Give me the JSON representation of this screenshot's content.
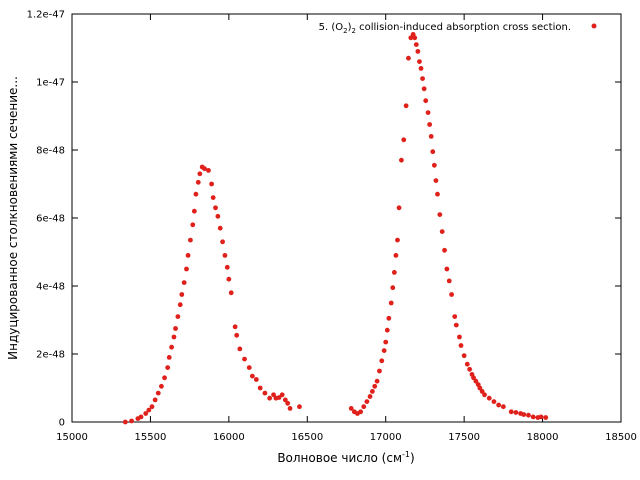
{
  "chart_data": {
    "type": "scatter",
    "title": "",
    "xlabel": "Волновое число (см",
    "xlabel_sup": "-1",
    "xlabel_end": ")",
    "ylabel": "Индуцированное столкновениями сечение...",
    "xlim": [
      15000,
      18500
    ],
    "ylim": [
      0,
      1.2e-47
    ],
    "grid": false,
    "legend_position": "top-right",
    "x_ticks": [
      15000,
      15500,
      16000,
      16500,
      17000,
      17500,
      18000,
      18500
    ],
    "x_tick_labels": [
      "15000",
      "15500",
      "16000",
      "16500",
      "17000",
      "17500",
      "18000",
      "18500"
    ],
    "y_ticks": [
      0,
      2e-48,
      4e-48,
      6e-48,
      8e-48,
      1e-47,
      1.2e-47
    ],
    "y_tick_labels": [
      "0",
      "2e-48",
      "4e-48",
      "6e-48",
      "8e-48",
      "1e-47",
      "1.2e-47"
    ],
    "colors": {
      "series": "#e0201b",
      "axis": "#000000"
    },
    "series": [
      {
        "name": "5. (O2)2 collision-induced absorption cross section.",
        "legend_parts": [
          "5. (O",
          "2",
          ")",
          "2",
          " collision-induced absorption cross section."
        ],
        "points": [
          [
            15340,
            0.0
          ],
          [
            15380,
            3e-50
          ],
          [
            15420,
            1e-49
          ],
          [
            15440,
            1.5e-49
          ],
          [
            15470,
            2.5e-49
          ],
          [
            15490,
            3.5e-49
          ],
          [
            15510,
            4.5e-49
          ],
          [
            15530,
            6.5e-49
          ],
          [
            15550,
            8.5e-49
          ],
          [
            15570,
            1.05e-48
          ],
          [
            15590,
            1.3e-48
          ],
          [
            15610,
            1.6e-48
          ],
          [
            15620,
            1.9e-48
          ],
          [
            15635,
            2.2e-48
          ],
          [
            15650,
            2.5e-48
          ],
          [
            15660,
            2.75e-48
          ],
          [
            15675,
            3.1e-48
          ],
          [
            15690,
            3.45e-48
          ],
          [
            15700,
            3.75e-48
          ],
          [
            15715,
            4.1e-48
          ],
          [
            15730,
            4.5e-48
          ],
          [
            15740,
            4.9e-48
          ],
          [
            15755,
            5.35e-48
          ],
          [
            15770,
            5.8e-48
          ],
          [
            15780,
            6.2e-48
          ],
          [
            15790,
            6.7e-48
          ],
          [
            15805,
            7.05e-48
          ],
          [
            15815,
            7.3e-48
          ],
          [
            15830,
            7.5e-48
          ],
          [
            15845,
            7.45e-48
          ],
          [
            15870,
            7.4e-48
          ],
          [
            15890,
            7e-48
          ],
          [
            15900,
            6.6e-48
          ],
          [
            15915,
            6.3e-48
          ],
          [
            15930,
            6.05e-48
          ],
          [
            15945,
            5.7e-48
          ],
          [
            15960,
            5.3e-48
          ],
          [
            15975,
            4.9e-48
          ],
          [
            15990,
            4.55e-48
          ],
          [
            16000,
            4.2e-48
          ],
          [
            16015,
            3.8e-48
          ],
          [
            16040,
            2.8e-48
          ],
          [
            16050,
            2.55e-48
          ],
          [
            16070,
            2.15e-48
          ],
          [
            16100,
            1.85e-48
          ],
          [
            16130,
            1.6e-48
          ],
          [
            16150,
            1.35e-48
          ],
          [
            16175,
            1.25e-48
          ],
          [
            16200,
            1e-48
          ],
          [
            16230,
            8.5e-49
          ],
          [
            16260,
            7e-49
          ],
          [
            16285,
            8e-49
          ],
          [
            16300,
            7e-49
          ],
          [
            16320,
            7.2e-49
          ],
          [
            16340,
            8e-49
          ],
          [
            16360,
            6.5e-49
          ],
          [
            16375,
            5.5e-49
          ],
          [
            16390,
            4e-49
          ],
          [
            16450,
            4.5e-49
          ],
          [
            16780,
            4e-49
          ],
          [
            16800,
            3e-49
          ],
          [
            16820,
            2.5e-49
          ],
          [
            16840,
            3e-49
          ],
          [
            16860,
            4.5e-49
          ],
          [
            16880,
            6e-49
          ],
          [
            16900,
            7.5e-49
          ],
          [
            16915,
            9e-49
          ],
          [
            16930,
            1.05e-48
          ],
          [
            16945,
            1.2e-48
          ],
          [
            16960,
            1.5e-48
          ],
          [
            16975,
            1.8e-48
          ],
          [
            16990,
            2.1e-48
          ],
          [
            17000,
            2.35e-48
          ],
          [
            17010,
            2.7e-48
          ],
          [
            17020,
            3.05e-48
          ],
          [
            17035,
            3.5e-48
          ],
          [
            17045,
            3.95e-48
          ],
          [
            17055,
            4.4e-48
          ],
          [
            17065,
            4.9e-48
          ],
          [
            17075,
            5.35e-48
          ],
          [
            17085,
            6.3e-48
          ],
          [
            17100,
            7.7e-48
          ],
          [
            17115,
            8.3e-48
          ],
          [
            17130,
            9.3e-48
          ],
          [
            17145,
            1.07e-47
          ],
          [
            17160,
            1.13e-47
          ],
          [
            17175,
            1.14e-47
          ],
          [
            17185,
            1.13e-47
          ],
          [
            17195,
            1.11e-47
          ],
          [
            17205,
            1.09e-47
          ],
          [
            17215,
            1.06e-47
          ],
          [
            17225,
            1.04e-47
          ],
          [
            17235,
            1.01e-47
          ],
          [
            17245,
            9.8e-48
          ],
          [
            17255,
            9.45e-48
          ],
          [
            17270,
            9.1e-48
          ],
          [
            17280,
            8.75e-48
          ],
          [
            17290,
            8.4e-48
          ],
          [
            17300,
            7.95e-48
          ],
          [
            17310,
            7.55e-48
          ],
          [
            17320,
            7.1e-48
          ],
          [
            17330,
            6.7e-48
          ],
          [
            17345,
            6.1e-48
          ],
          [
            17360,
            5.6e-48
          ],
          [
            17375,
            5.05e-48
          ],
          [
            17390,
            4.5e-48
          ],
          [
            17405,
            4.15e-48
          ],
          [
            17420,
            3.75e-48
          ],
          [
            17440,
            3.1e-48
          ],
          [
            17450,
            2.85e-48
          ],
          [
            17470,
            2.5e-48
          ],
          [
            17480,
            2.25e-48
          ],
          [
            17500,
            1.95e-48
          ],
          [
            17520,
            1.7e-48
          ],
          [
            17535,
            1.55e-48
          ],
          [
            17550,
            1.4e-48
          ],
          [
            17560,
            1.3e-48
          ],
          [
            17575,
            1.2e-48
          ],
          [
            17590,
            1.1e-48
          ],
          [
            17600,
            1e-48
          ],
          [
            17615,
            9e-49
          ],
          [
            17630,
            8e-49
          ],
          [
            17660,
            7e-49
          ],
          [
            17690,
            6e-49
          ],
          [
            17720,
            5e-49
          ],
          [
            17750,
            4.5e-49
          ],
          [
            17800,
            3e-49
          ],
          [
            17830,
            2.8e-49
          ],
          [
            17860,
            2.5e-49
          ],
          [
            17880,
            2.2e-49
          ],
          [
            17910,
            2e-49
          ],
          [
            17940,
            1.5e-49
          ],
          [
            17970,
            1.3e-49
          ],
          [
            17990,
            1.5e-49
          ],
          [
            18020,
            1.3e-49
          ]
        ]
      }
    ]
  }
}
